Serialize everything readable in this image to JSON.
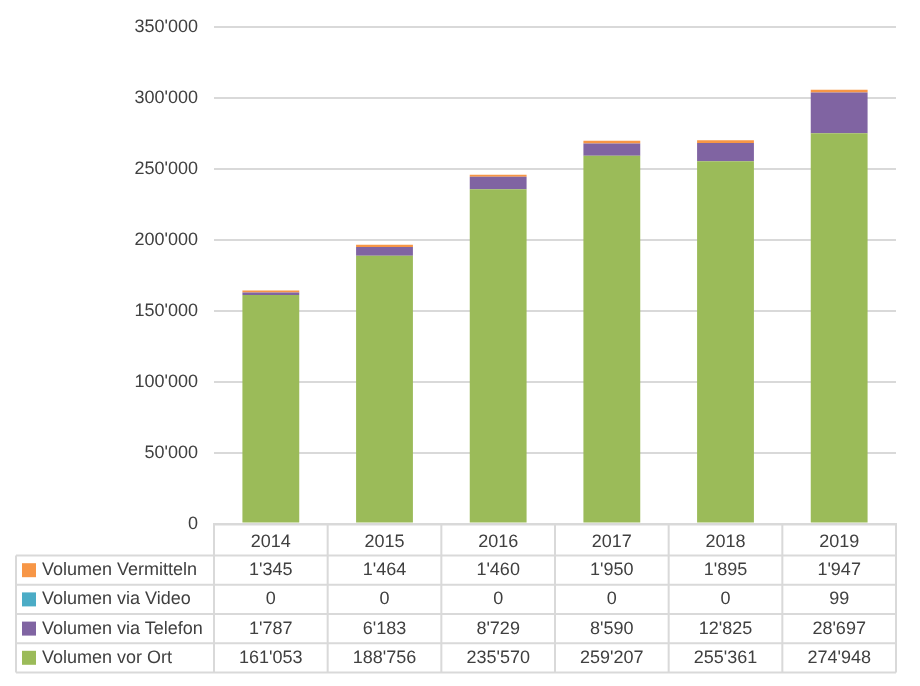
{
  "chart_data": {
    "type": "bar",
    "stacked": true,
    "categories": [
      "2014",
      "2015",
      "2016",
      "2017",
      "2018",
      "2019"
    ],
    "series": [
      {
        "name": "Volumen vor Ort",
        "color": "#9bbb59",
        "values": [
          161053,
          188756,
          235570,
          259207,
          255361,
          274948
        ],
        "value_labels": [
          "161'053",
          "188'756",
          "235'570",
          "259'207",
          "255'361",
          "274'948"
        ]
      },
      {
        "name": "Volumen via Telefon",
        "color": "#8064a2",
        "values": [
          1787,
          6183,
          8729,
          8590,
          12825,
          28697
        ],
        "value_labels": [
          "1'787",
          "6'183",
          "8'729",
          "8'590",
          "12'825",
          "28'697"
        ]
      },
      {
        "name": "Volumen via Video",
        "color": "#4bacc6",
        "values": [
          0,
          0,
          0,
          0,
          0,
          99
        ],
        "value_labels": [
          "0",
          "0",
          "0",
          "0",
          "0",
          "99"
        ]
      },
      {
        "name": "Volumen Vermitteln",
        "color": "#f79646",
        "values": [
          1345,
          1464,
          1460,
          1950,
          1895,
          1947
        ],
        "value_labels": [
          "1'345",
          "1'464",
          "1'460",
          "1'950",
          "1'895",
          "1'947"
        ]
      }
    ],
    "ylim": [
      0,
      350000
    ],
    "yticks": [
      {
        "value": 0,
        "label": "0"
      },
      {
        "value": 50000,
        "label": "50'000"
      },
      {
        "value": 100000,
        "label": "100'000"
      },
      {
        "value": 150000,
        "label": "150'000"
      },
      {
        "value": 200000,
        "label": "200'000"
      },
      {
        "value": 250000,
        "label": "250'000"
      },
      {
        "value": 300000,
        "label": "300'000"
      },
      {
        "value": 350000,
        "label": "350'000"
      }
    ],
    "grid": "y",
    "legend": "bottom"
  }
}
